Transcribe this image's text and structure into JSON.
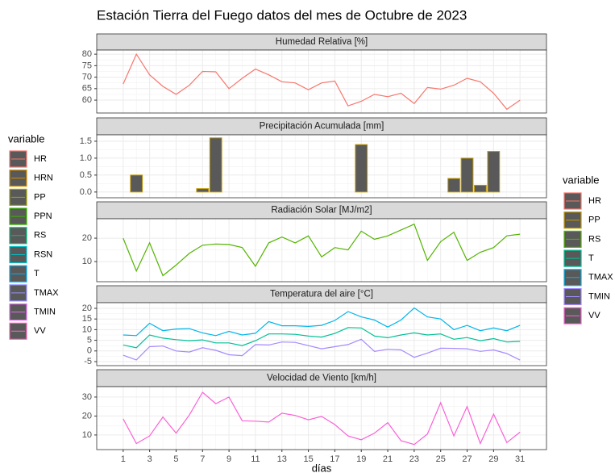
{
  "title": "Estación Tierra del Fuego datos del mes de Octubre de 2023",
  "x_label": "días",
  "x": [
    1,
    2,
    3,
    4,
    5,
    6,
    7,
    8,
    9,
    10,
    11,
    12,
    13,
    14,
    15,
    16,
    17,
    18,
    19,
    20,
    21,
    22,
    23,
    24,
    25,
    26,
    27,
    28,
    29,
    30,
    31
  ],
  "xlim": [
    -1,
    33
  ],
  "xticks": [
    1,
    3,
    5,
    7,
    9,
    11,
    13,
    15,
    17,
    19,
    21,
    23,
    25,
    27,
    29,
    31
  ],
  "legends": [
    {
      "title": "variable",
      "items": [
        {
          "name": "HR",
          "color": "#F8766D"
        },
        {
          "name": "HRN",
          "color": "#D89000"
        },
        {
          "name": "PP",
          "color": "#A3A500"
        },
        {
          "name": "PPN",
          "color": "#39B600"
        },
        {
          "name": "RS",
          "color": "#00BF7D"
        },
        {
          "name": "RSN",
          "color": "#00BFC4"
        },
        {
          "name": "T",
          "color": "#00B0F6"
        },
        {
          "name": "TMAX",
          "color": "#9590FF"
        },
        {
          "name": "TMIN",
          "color": "#E76BF3"
        },
        {
          "name": "VV",
          "color": "#FF62BC"
        }
      ]
    },
    {
      "title": "variable",
      "items": [
        {
          "name": "HR",
          "color": "#F8766D"
        },
        {
          "name": "PP",
          "color": "#C49A00"
        },
        {
          "name": "RS",
          "color": "#53B400"
        },
        {
          "name": "T",
          "color": "#00C094"
        },
        {
          "name": "TMAX",
          "color": "#00B6EB"
        },
        {
          "name": "TMIN",
          "color": "#A58AFF"
        },
        {
          "name": "VV",
          "color": "#FB61D7"
        }
      ]
    }
  ],
  "chart_data": [
    {
      "type": "line",
      "title": "Humedad Relativa [%]",
      "ylim": [
        54.4,
        81.8
      ],
      "yticks": [
        60,
        65,
        70,
        75,
        80
      ],
      "grid": true,
      "series": [
        {
          "name": "HR",
          "color": "#F8766D",
          "values": [
            67,
            80,
            71,
            66,
            62.5,
            66.5,
            72.5,
            72.3,
            65,
            69.5,
            73.5,
            71,
            68,
            67.5,
            64.5,
            67.5,
            68.3,
            57.5,
            59.5,
            62.5,
            61.5,
            63,
            58.5,
            65.5,
            64.8,
            66.5,
            69.5,
            68,
            63,
            56,
            60
          ]
        }
      ]
    },
    {
      "type": "bar",
      "title": "Precipitación Acumulada [mm]",
      "ylim": [
        -0.17,
        1.69
      ],
      "yticks": [
        {
          "value": 0,
          "label": "0.0"
        },
        0.5,
        {
          "value": 1,
          "label": "1.0"
        },
        1.5
      ],
      "grid": true,
      "series": [
        {
          "name": "PP",
          "color": "#C49A00",
          "fill": "#595959",
          "values": [
            0,
            0.5,
            0,
            0,
            0,
            0,
            0.1,
            1.6,
            0,
            0,
            0,
            0,
            0,
            0,
            0,
            0,
            0,
            0,
            1.4,
            0,
            0,
            0,
            0,
            0,
            0,
            0.4,
            1.0,
            0.2,
            1.2,
            0,
            0
          ]
        }
      ]
    },
    {
      "type": "line",
      "title": "Radiación Solar [MJ/m2]",
      "ylim": [
        1.4,
        28.3
      ],
      "yticks": [
        10,
        20
      ],
      "grid": true,
      "series": [
        {
          "name": "RS",
          "color": "#53B400",
          "values": [
            20,
            6,
            18,
            4,
            8.5,
            13.5,
            17,
            17.5,
            17.3,
            16,
            8,
            18,
            20.5,
            18,
            21,
            12,
            16,
            15,
            23,
            19.5,
            21,
            23.5,
            26,
            10.5,
            18.5,
            22.5,
            10.5,
            14,
            16,
            21,
            21.7
          ]
        }
      ]
    },
    {
      "type": "line",
      "title": "Temperatura del aire [°C]",
      "ylim": [
        -6.9,
        22.65
      ],
      "yticks": [
        -5,
        0,
        5,
        10,
        15,
        20
      ],
      "grid": true,
      "series": [
        {
          "name": "TMAX",
          "color": "#00B6EB",
          "values": [
            7.5,
            7.2,
            13,
            9.5,
            10.3,
            10.5,
            8.5,
            7.2,
            9.2,
            7.5,
            8.3,
            13.8,
            11.8,
            11.8,
            11.5,
            12,
            14.3,
            18.5,
            16,
            14.5,
            11.2,
            14.5,
            20.2,
            16,
            15,
            10,
            12,
            9.5,
            10.8,
            9.5,
            12
          ]
        },
        {
          "name": "T",
          "color": "#00C094",
          "values": [
            2.8,
            1.5,
            7.5,
            6,
            5.3,
            4.8,
            5.2,
            3.8,
            3.8,
            2.5,
            4.8,
            8,
            8,
            7.8,
            7,
            6.5,
            8.2,
            11,
            10.8,
            7,
            6.2,
            7.5,
            8.5,
            7.5,
            8,
            5.5,
            6.3,
            4.8,
            5.8,
            4.2,
            4.5
          ]
        },
        {
          "name": "TMIN",
          "color": "#A58AFF",
          "values": [
            -2,
            -4.2,
            2,
            2.3,
            0,
            -0.5,
            1.5,
            0.3,
            -1.8,
            -2.2,
            3,
            2.8,
            4.2,
            4,
            2.5,
            1,
            2,
            3,
            5.5,
            -0.2,
            0.8,
            0.5,
            -3,
            -1,
            1.3,
            1.2,
            1,
            -0.2,
            0.5,
            -1.2,
            -4.3
          ]
        }
      ]
    },
    {
      "type": "line",
      "title": "Velocidad de Viento [km/h]",
      "ylim": [
        2.3,
        35.5
      ],
      "yticks": [
        10,
        20,
        30
      ],
      "grid": true,
      "series": [
        {
          "name": "VV",
          "color": "#FB61D7",
          "values": [
            18.5,
            5.5,
            9.5,
            19.5,
            11,
            20.5,
            32.5,
            26.5,
            30,
            17.5,
            17.3,
            16.8,
            21.5,
            20.3,
            18,
            19.8,
            15.5,
            9.5,
            7.5,
            11,
            16.5,
            7,
            5,
            10.5,
            27,
            9.5,
            25,
            5.5,
            21,
            6,
            11.5
          ]
        }
      ]
    }
  ]
}
